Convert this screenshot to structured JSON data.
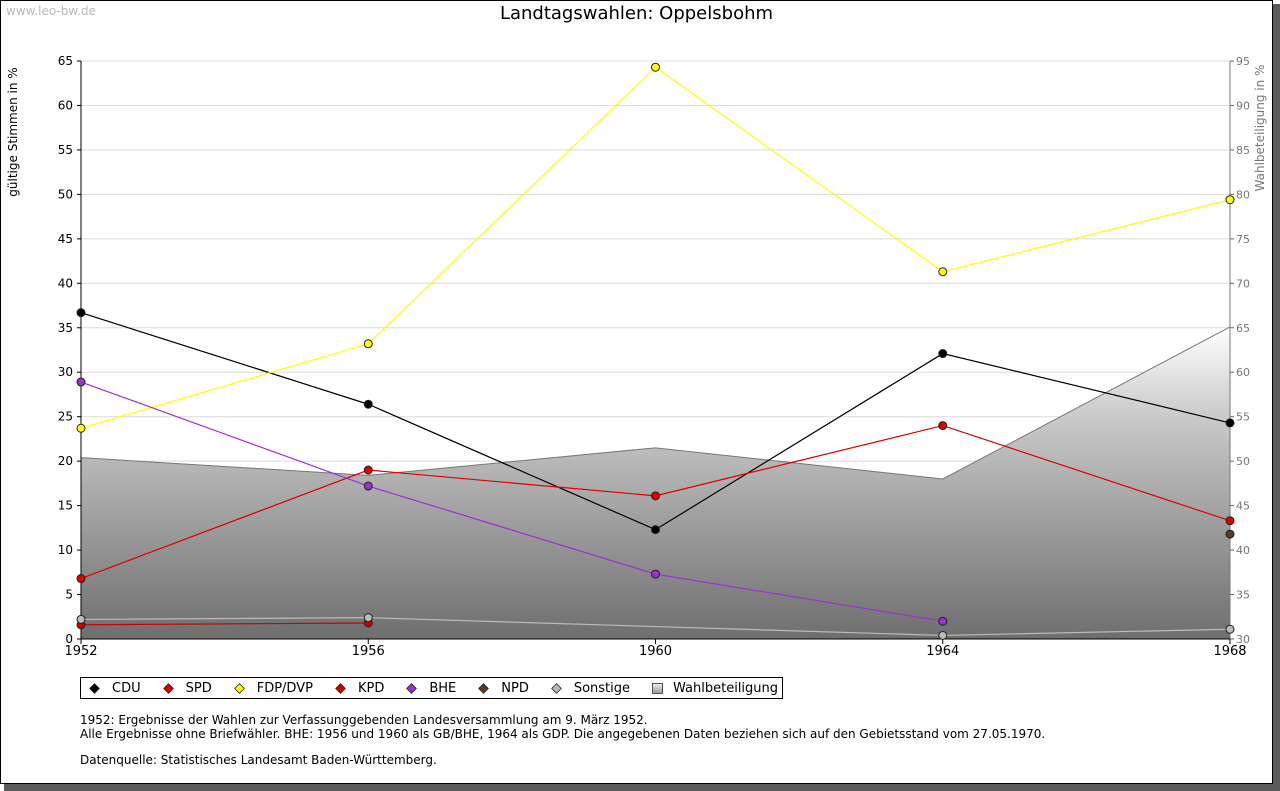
{
  "watermark": "www.leo-bw.de",
  "chart_data": {
    "type": "line",
    "title": "Landtagswahlen: Oppelsbohm",
    "categories": [
      "1952",
      "1956",
      "1960",
      "1964",
      "1968"
    ],
    "ylabel_left": "gültige Stimmen in %",
    "ylabel_right": "Wahlbeteiligung in %",
    "y_left_range": [
      0,
      65
    ],
    "y_left_ticks": [
      0,
      5,
      10,
      15,
      20,
      25,
      30,
      35,
      40,
      45,
      50,
      55,
      60,
      65
    ],
    "y_right_range": [
      30,
      95
    ],
    "y_right_ticks": [
      30,
      35,
      40,
      45,
      50,
      55,
      60,
      65,
      70,
      75,
      80,
      85,
      90,
      95
    ],
    "grid": true,
    "series": [
      {
        "name": "CDU",
        "color": "#000000",
        "values": [
          36.7,
          26.4,
          12.3,
          32.1,
          24.3
        ]
      },
      {
        "name": "SPD",
        "color": "#dd0000",
        "values": [
          6.8,
          19.0,
          16.1,
          24.0,
          13.3
        ]
      },
      {
        "name": "FDP/DVP",
        "color": "#ffff00",
        "values": [
          23.7,
          33.2,
          64.3,
          41.3,
          49.4
        ]
      },
      {
        "name": "KPD",
        "color": "#cc0000",
        "values": [
          1.6,
          1.8,
          null,
          null,
          null
        ]
      },
      {
        "name": "BHE",
        "color": "#9933cc",
        "values": [
          28.9,
          17.2,
          7.3,
          2.0,
          null
        ]
      },
      {
        "name": "NPD",
        "color": "#5a3a2a",
        "values": [
          null,
          null,
          null,
          null,
          11.8
        ]
      },
      {
        "name": "Sonstige",
        "color": "#bbbbbb",
        "values": [
          2.2,
          2.4,
          null,
          0.4,
          1.1
        ]
      }
    ],
    "turnout": {
      "name": "Wahlbeteiligung",
      "axis": "right",
      "values": [
        50.4,
        48.4,
        51.5,
        48.0,
        65.1
      ]
    }
  },
  "notes": {
    "line1": "1952: Ergebnisse der Wahlen zur Verfassunggebenden Landesversammlung am 9. März 1952.",
    "line2": "Alle Ergebnisse ohne Briefwähler. BHE: 1956 und 1960 als GB/BHE, 1964 als GDP. Die angegebenen Daten beziehen sich auf den Gebietsstand vom 27.05.1970.",
    "source": "Datenquelle: Statistisches Landesamt Baden-Württemberg."
  }
}
